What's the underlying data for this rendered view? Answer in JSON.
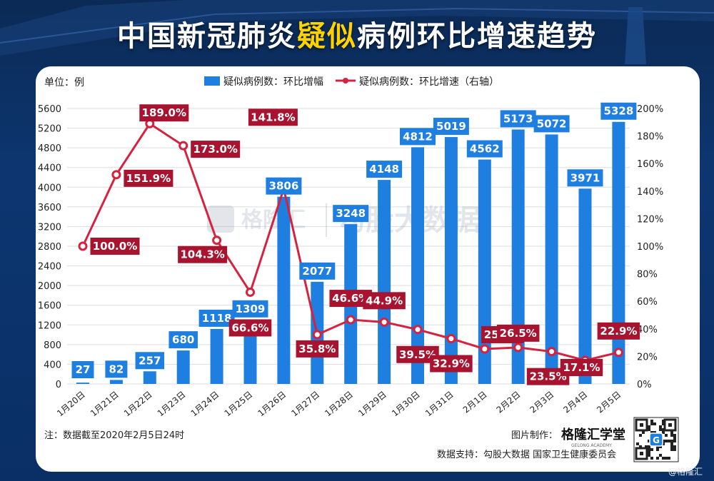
{
  "title": {
    "part1": "中国新冠肺炎",
    "highlight": "疑似",
    "part2": "病例环比增速趋势"
  },
  "unit_label": "单位：例",
  "legend": {
    "bar": "疑似病例数：环比增幅",
    "line": "疑似病例数：环比增速（右轴）"
  },
  "note": "注：数据截至2020年2月5日24时",
  "made_by_label": "图片制作：",
  "brand": "格隆汇学堂",
  "brand_sub": "GELONG ACADEMY",
  "support": "数据支持：勾股大数据  国家卫生健康委员会",
  "watermark_left": "格隆汇",
  "watermark_right": "勾股大数据",
  "qr_center": "G",
  "credit": "@格隆汇",
  "colors": {
    "bar": "#1e7fe0",
    "line": "#d6213f",
    "bar_label_bg": "#1e7fe0",
    "line_label_bg": "#a8142f"
  },
  "chart_data": {
    "type": "bar+line",
    "categories": [
      "1月20日",
      "1月21日",
      "1月22日",
      "1月23日",
      "1月24日",
      "1月25日",
      "1月26日",
      "1月27日",
      "1月28日",
      "1月29日",
      "1月30日",
      "1月31日",
      "2月1日",
      "2月2日",
      "2月3日",
      "2月4日",
      "2月5日"
    ],
    "series": [
      {
        "type": "bar",
        "axis": "left",
        "values": [
          27,
          82,
          257,
          680,
          1118,
          1309,
          3806,
          2077,
          3248,
          4148,
          4812,
          5019,
          4562,
          5173,
          5072,
          3971,
          5328
        ]
      },
      {
        "type": "line",
        "axis": "right",
        "values": [
          100.0,
          151.9,
          189.0,
          173.0,
          104.3,
          66.6,
          141.8,
          35.8,
          46.6,
          44.9,
          39.5,
          32.9,
          25.4,
          26.5,
          23.5,
          17.1,
          22.9
        ]
      }
    ],
    "y_left": {
      "min": 0,
      "max": 5600,
      "ticks": [
        0,
        400,
        800,
        1200,
        1600,
        2000,
        2400,
        2800,
        3200,
        3600,
        4000,
        4400,
        4800,
        5200,
        5600
      ]
    },
    "y_right": {
      "min": 0,
      "max": 200,
      "ticks": [
        "0%",
        "20%",
        "40%",
        "60%",
        "80%",
        "100%",
        "120%",
        "140%",
        "160%",
        "180%",
        "200%"
      ]
    },
    "bar_labels": [
      "27",
      "82",
      "257",
      "680",
      "1118",
      "1309",
      "3806",
      "2077",
      "3248",
      "4148",
      "4812",
      "5019",
      "4562",
      "5173",
      "5072",
      "3971",
      "5328"
    ],
    "line_labels": [
      "100.0%",
      "151.9%",
      "189.0%",
      "173.0%",
      "104.3%",
      "66.6%",
      "141.8%",
      "35.8%",
      "46.6%",
      "44.9%",
      "39.5%",
      "32.9%",
      "25.4%",
      "26.5%",
      "23.5%",
      "17.1%",
      "22.9%"
    ],
    "grid": true
  }
}
